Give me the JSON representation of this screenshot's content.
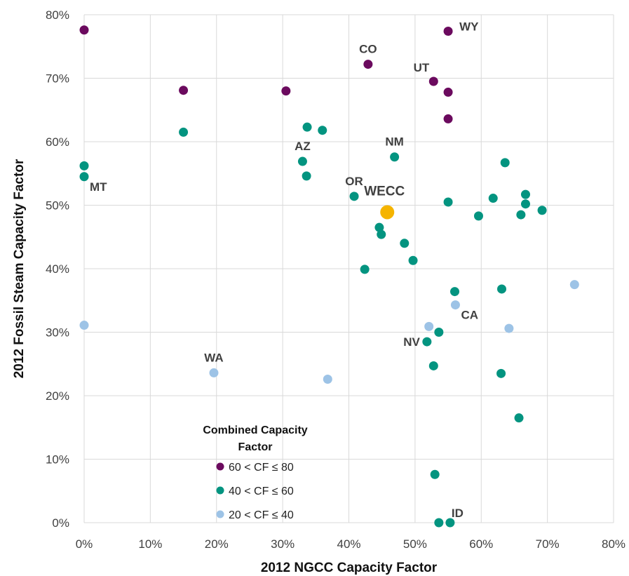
{
  "chart_data": {
    "type": "scatter",
    "xlabel": "2012 NGCC Capacity Factor",
    "ylabel": "2012 Fossil Steam Capacity Factor",
    "xlim": [
      0,
      80
    ],
    "ylim": [
      0,
      80
    ],
    "x_ticks": [
      "0%",
      "10%",
      "20%",
      "30%",
      "40%",
      "50%",
      "60%",
      "70%",
      "80%"
    ],
    "y_ticks": [
      "0%",
      "10%",
      "20%",
      "30%",
      "40%",
      "50%",
      "60%",
      "70%",
      "80%"
    ],
    "grid": true,
    "legend": {
      "title": "Combined Capacity Factor",
      "position": "bottom-left"
    },
    "series": [
      {
        "name": "60 < CF ≤ 80",
        "color": "#6b0a5e",
        "points": [
          {
            "x": 0,
            "y": 77.6
          },
          {
            "x": 15,
            "y": 68.1
          },
          {
            "x": 30.5,
            "y": 68
          },
          {
            "x": 42.9,
            "y": 72.2
          },
          {
            "x": 52.8,
            "y": 69.5
          },
          {
            "x": 55,
            "y": 77.4
          },
          {
            "x": 55,
            "y": 67.8
          },
          {
            "x": 55,
            "y": 63.6
          }
        ]
      },
      {
        "name": "40 < CF ≤ 60",
        "color": "#039480",
        "points": [
          {
            "x": 0,
            "y": 56.2
          },
          {
            "x": 0,
            "y": 54.5
          },
          {
            "x": 15,
            "y": 61.5
          },
          {
            "x": 33,
            "y": 56.9
          },
          {
            "x": 33.7,
            "y": 62.3
          },
          {
            "x": 33.6,
            "y": 54.6
          },
          {
            "x": 36,
            "y": 61.8
          },
          {
            "x": 40.8,
            "y": 51.4
          },
          {
            "x": 44.6,
            "y": 46.5
          },
          {
            "x": 44.9,
            "y": 45.4
          },
          {
            "x": 46.9,
            "y": 57.6
          },
          {
            "x": 42.4,
            "y": 39.9
          },
          {
            "x": 48.4,
            "y": 44
          },
          {
            "x": 49.7,
            "y": 41.3
          },
          {
            "x": 55,
            "y": 50.5
          },
          {
            "x": 56,
            "y": 36.4
          },
          {
            "x": 53.6,
            "y": 30
          },
          {
            "x": 51.8,
            "y": 28.5
          },
          {
            "x": 52.8,
            "y": 24.7
          },
          {
            "x": 53,
            "y": 7.6
          },
          {
            "x": 53.6,
            "y": 0
          },
          {
            "x": 55.3,
            "y": 0
          },
          {
            "x": 59.6,
            "y": 48.3
          },
          {
            "x": 61.8,
            "y": 51.1
          },
          {
            "x": 63.6,
            "y": 56.7
          },
          {
            "x": 63.1,
            "y": 36.8
          },
          {
            "x": 63,
            "y": 23.5
          },
          {
            "x": 65.7,
            "y": 16.5
          },
          {
            "x": 66,
            "y": 48.5
          },
          {
            "x": 66.7,
            "y": 51.7
          },
          {
            "x": 66.7,
            "y": 50.2
          },
          {
            "x": 69.2,
            "y": 49.2
          }
        ]
      },
      {
        "name": "20 < CF ≤ 40",
        "color": "#9dc3e6",
        "points": [
          {
            "x": 0,
            "y": 31.1
          },
          {
            "x": 19.6,
            "y": 23.6
          },
          {
            "x": 36.8,
            "y": 22.6
          },
          {
            "x": 52.1,
            "y": 30.9
          },
          {
            "x": 56.1,
            "y": 34.3
          },
          {
            "x": 64.2,
            "y": 30.6
          },
          {
            "x": 74.1,
            "y": 37.5
          }
        ]
      }
    ],
    "highlight": {
      "name": "WECC",
      "x": 45.8,
      "y": 48.9,
      "color": "#f5b400"
    },
    "annotations": [
      {
        "text": "WY",
        "x": 55,
        "y": 77.4,
        "pos": "right"
      },
      {
        "text": "CO",
        "x": 42.9,
        "y": 72.2,
        "pos": "above"
      },
      {
        "text": "UT",
        "x": 52.8,
        "y": 69.5,
        "pos": "above-left"
      },
      {
        "text": "AZ",
        "x": 33,
        "y": 56.9,
        "pos": "above"
      },
      {
        "text": "NM",
        "x": 46.9,
        "y": 57.6,
        "pos": "above"
      },
      {
        "text": "MT",
        "x": 0,
        "y": 54.5,
        "pos": "below-right"
      },
      {
        "text": "OR",
        "x": 40.8,
        "y": 51.4,
        "pos": "above"
      },
      {
        "text": "CA",
        "x": 56.1,
        "y": 34.3,
        "pos": "below-right"
      },
      {
        "text": "NV",
        "x": 51.8,
        "y": 28.5,
        "pos": "left"
      },
      {
        "text": "WA",
        "x": 19.6,
        "y": 23.6,
        "pos": "above"
      },
      {
        "text": "ID",
        "x": 55.3,
        "y": 0,
        "pos": "above-right"
      }
    ]
  }
}
